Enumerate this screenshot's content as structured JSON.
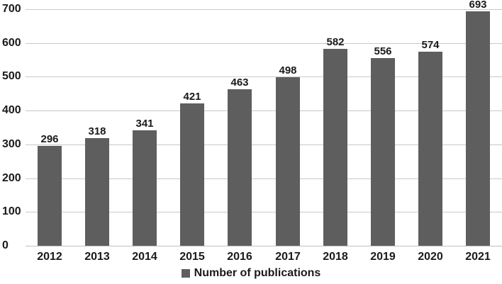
{
  "chart_data": {
    "type": "bar",
    "title": "",
    "categories": [
      "2012",
      "2013",
      "2014",
      "2015",
      "2016",
      "2017",
      "2018",
      "2019",
      "2020",
      "2021"
    ],
    "values": [
      296,
      318,
      341,
      421,
      463,
      498,
      582,
      556,
      574,
      693
    ],
    "legend": "Number of publications",
    "legend_position": "bottom-center",
    "xlabel": "",
    "ylabel": "",
    "ylim": [
      0,
      700
    ],
    "yticks": [
      0,
      100,
      200,
      300,
      400,
      500,
      600,
      700
    ],
    "grid": "horizontal",
    "data_labels": "above-bars",
    "bar_color": "#5e5e5e",
    "gridline_color": "#c9c9c9",
    "axis_line_color": "#c0c0c0",
    "text_color": "#1a1a1a",
    "background_color": "#ffffff"
  }
}
